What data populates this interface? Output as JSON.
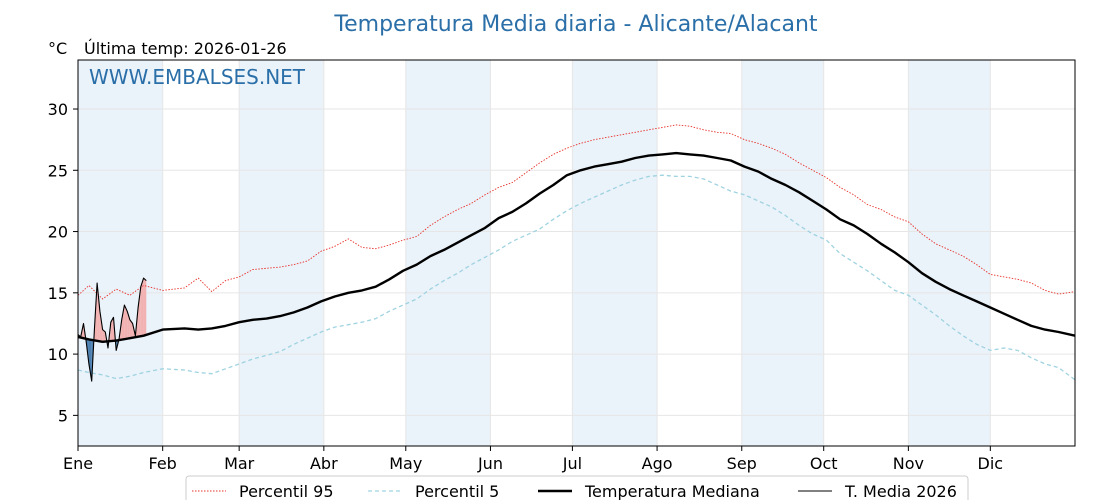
{
  "page": {
    "title": "Temperatura Media diaria - Alicante/Alacant",
    "unit_label": "°C",
    "last_temp_label": "Última temp: 2026-01-26",
    "watermark": "WWW.EMBALSES.NET"
  },
  "legend": [
    {
      "label": "Percentil 95",
      "color": "#e8322b",
      "style": "dotted"
    },
    {
      "label": "Percentil 5",
      "color": "#9fd3e0",
      "style": "dashed"
    },
    {
      "label": "Temperatura Mediana",
      "color": "#000000",
      "style": "thick"
    },
    {
      "label": "T. Media 2026",
      "color": "#000000",
      "style": "thin"
    }
  ],
  "colors": {
    "title": "#2b6fa8",
    "month_band": "#eaf2fa",
    "above_median_fill": "#f2b2b2",
    "below_median_fill": "#4b7fb0",
    "grid": "#e6e6e6"
  },
  "chart_data": {
    "type": "line",
    "title": "Temperatura Media diaria - Alicante/Alacant",
    "ylabel": "°C",
    "xlabel": "",
    "ylim": [
      2.5,
      34
    ],
    "yticks": [
      5,
      10,
      15,
      20,
      25,
      30
    ],
    "x_unit": "day of year",
    "xlim": [
      1,
      366
    ],
    "month_ticks": [
      {
        "label": "Ene",
        "day": 1
      },
      {
        "label": "Feb",
        "day": 32
      },
      {
        "label": "Mar",
        "day": 60
      },
      {
        "label": "Abr",
        "day": 91
      },
      {
        "label": "May",
        "day": 121
      },
      {
        "label": "Jun",
        "day": 152
      },
      {
        "label": "Jul",
        "day": 182
      },
      {
        "label": "Ago",
        "day": 213
      },
      {
        "label": "Sep",
        "day": 244
      },
      {
        "label": "Oct",
        "day": 274
      },
      {
        "label": "Nov",
        "day": 305
      },
      {
        "label": "Dic",
        "day": 335
      }
    ],
    "grid": true,
    "legend_position": "bottom",
    "series": [
      {
        "name": "Percentil 95",
        "style": "dotted",
        "points": [
          [
            1,
            14.8
          ],
          [
            5,
            15.6
          ],
          [
            10,
            14.5
          ],
          [
            15,
            15.3
          ],
          [
            20,
            14.8
          ],
          [
            25,
            15.6
          ],
          [
            32,
            15.2
          ],
          [
            40,
            15.4
          ],
          [
            45,
            16.2
          ],
          [
            50,
            15.1
          ],
          [
            55,
            16.0
          ],
          [
            60,
            16.3
          ],
          [
            65,
            16.9
          ],
          [
            70,
            17.0
          ],
          [
            75,
            17.1
          ],
          [
            80,
            17.3
          ],
          [
            85,
            17.6
          ],
          [
            90,
            18.4
          ],
          [
            95,
            18.8
          ],
          [
            100,
            19.4
          ],
          [
            105,
            18.7
          ],
          [
            110,
            18.6
          ],
          [
            115,
            18.9
          ],
          [
            120,
            19.3
          ],
          [
            125,
            19.6
          ],
          [
            130,
            20.5
          ],
          [
            135,
            21.2
          ],
          [
            140,
            21.8
          ],
          [
            145,
            22.3
          ],
          [
            150,
            23.0
          ],
          [
            155,
            23.6
          ],
          [
            160,
            24.0
          ],
          [
            165,
            24.8
          ],
          [
            170,
            25.6
          ],
          [
            175,
            26.3
          ],
          [
            180,
            26.8
          ],
          [
            185,
            27.2
          ],
          [
            190,
            27.5
          ],
          [
            195,
            27.7
          ],
          [
            200,
            27.9
          ],
          [
            205,
            28.1
          ],
          [
            210,
            28.3
          ],
          [
            215,
            28.5
          ],
          [
            220,
            28.7
          ],
          [
            225,
            28.6
          ],
          [
            230,
            28.3
          ],
          [
            235,
            28.1
          ],
          [
            240,
            28.0
          ],
          [
            245,
            27.5
          ],
          [
            250,
            27.2
          ],
          [
            255,
            26.8
          ],
          [
            260,
            26.3
          ],
          [
            265,
            25.6
          ],
          [
            270,
            25.0
          ],
          [
            275,
            24.4
          ],
          [
            280,
            23.6
          ],
          [
            285,
            23.0
          ],
          [
            290,
            22.2
          ],
          [
            295,
            21.8
          ],
          [
            300,
            21.2
          ],
          [
            305,
            20.8
          ],
          [
            310,
            19.8
          ],
          [
            315,
            19.0
          ],
          [
            320,
            18.5
          ],
          [
            325,
            18.0
          ],
          [
            330,
            17.3
          ],
          [
            335,
            16.5
          ],
          [
            340,
            16.3
          ],
          [
            345,
            16.1
          ],
          [
            350,
            15.8
          ],
          [
            355,
            15.2
          ],
          [
            360,
            14.9
          ],
          [
            366,
            15.1
          ]
        ]
      },
      {
        "name": "Percentil 5",
        "style": "dashed",
        "points": [
          [
            1,
            8.7
          ],
          [
            5,
            8.5
          ],
          [
            10,
            8.3
          ],
          [
            15,
            8.0
          ],
          [
            20,
            8.2
          ],
          [
            25,
            8.5
          ],
          [
            32,
            8.8
          ],
          [
            40,
            8.7
          ],
          [
            45,
            8.5
          ],
          [
            50,
            8.4
          ],
          [
            55,
            8.8
          ],
          [
            60,
            9.2
          ],
          [
            65,
            9.6
          ],
          [
            70,
            9.9
          ],
          [
            75,
            10.2
          ],
          [
            80,
            10.8
          ],
          [
            85,
            11.3
          ],
          [
            90,
            11.8
          ],
          [
            95,
            12.2
          ],
          [
            100,
            12.4
          ],
          [
            105,
            12.6
          ],
          [
            110,
            12.9
          ],
          [
            115,
            13.5
          ],
          [
            120,
            14.0
          ],
          [
            125,
            14.5
          ],
          [
            130,
            15.3
          ],
          [
            135,
            16.0
          ],
          [
            140,
            16.6
          ],
          [
            145,
            17.3
          ],
          [
            150,
            17.9
          ],
          [
            155,
            18.5
          ],
          [
            160,
            19.2
          ],
          [
            165,
            19.7
          ],
          [
            170,
            20.2
          ],
          [
            175,
            21.0
          ],
          [
            180,
            21.7
          ],
          [
            185,
            22.3
          ],
          [
            190,
            22.8
          ],
          [
            195,
            23.3
          ],
          [
            200,
            23.8
          ],
          [
            205,
            24.2
          ],
          [
            210,
            24.5
          ],
          [
            215,
            24.6
          ],
          [
            220,
            24.5
          ],
          [
            225,
            24.5
          ],
          [
            230,
            24.3
          ],
          [
            235,
            23.8
          ],
          [
            240,
            23.3
          ],
          [
            245,
            23.0
          ],
          [
            250,
            22.5
          ],
          [
            255,
            22.0
          ],
          [
            260,
            21.3
          ],
          [
            265,
            20.5
          ],
          [
            270,
            19.8
          ],
          [
            275,
            19.3
          ],
          [
            280,
            18.2
          ],
          [
            285,
            17.5
          ],
          [
            290,
            16.8
          ],
          [
            295,
            16.0
          ],
          [
            300,
            15.2
          ],
          [
            305,
            14.8
          ],
          [
            310,
            14.0
          ],
          [
            315,
            13.2
          ],
          [
            320,
            12.3
          ],
          [
            325,
            11.5
          ],
          [
            330,
            10.8
          ],
          [
            335,
            10.3
          ],
          [
            340,
            10.5
          ],
          [
            345,
            10.3
          ],
          [
            350,
            9.7
          ],
          [
            355,
            9.2
          ],
          [
            360,
            8.9
          ],
          [
            366,
            7.9
          ]
        ]
      },
      {
        "name": "Temperatura Mediana",
        "style": "thick",
        "points": [
          [
            1,
            11.4
          ],
          [
            5,
            11.2
          ],
          [
            10,
            11.0
          ],
          [
            15,
            11.1
          ],
          [
            20,
            11.3
          ],
          [
            25,
            11.5
          ],
          [
            32,
            12.0
          ],
          [
            40,
            12.1
          ],
          [
            45,
            12.0
          ],
          [
            50,
            12.1
          ],
          [
            55,
            12.3
          ],
          [
            60,
            12.6
          ],
          [
            65,
            12.8
          ],
          [
            70,
            12.9
          ],
          [
            75,
            13.1
          ],
          [
            80,
            13.4
          ],
          [
            85,
            13.8
          ],
          [
            90,
            14.3
          ],
          [
            95,
            14.7
          ],
          [
            100,
            15.0
          ],
          [
            105,
            15.2
          ],
          [
            110,
            15.5
          ],
          [
            115,
            16.1
          ],
          [
            120,
            16.8
          ],
          [
            125,
            17.3
          ],
          [
            130,
            18.0
          ],
          [
            135,
            18.5
          ],
          [
            140,
            19.1
          ],
          [
            145,
            19.7
          ],
          [
            150,
            20.3
          ],
          [
            155,
            21.1
          ],
          [
            160,
            21.6
          ],
          [
            165,
            22.3
          ],
          [
            170,
            23.1
          ],
          [
            175,
            23.8
          ],
          [
            180,
            24.6
          ],
          [
            185,
            25.0
          ],
          [
            190,
            25.3
          ],
          [
            195,
            25.5
          ],
          [
            200,
            25.7
          ],
          [
            205,
            26.0
          ],
          [
            210,
            26.2
          ],
          [
            215,
            26.3
          ],
          [
            220,
            26.4
          ],
          [
            225,
            26.3
          ],
          [
            230,
            26.2
          ],
          [
            235,
            26.0
          ],
          [
            240,
            25.8
          ],
          [
            245,
            25.3
          ],
          [
            250,
            24.9
          ],
          [
            255,
            24.3
          ],
          [
            260,
            23.8
          ],
          [
            265,
            23.2
          ],
          [
            270,
            22.5
          ],
          [
            275,
            21.8
          ],
          [
            280,
            21.0
          ],
          [
            285,
            20.5
          ],
          [
            290,
            19.8
          ],
          [
            295,
            19.0
          ],
          [
            300,
            18.3
          ],
          [
            305,
            17.5
          ],
          [
            310,
            16.6
          ],
          [
            315,
            15.9
          ],
          [
            320,
            15.3
          ],
          [
            325,
            14.8
          ],
          [
            330,
            14.3
          ],
          [
            335,
            13.8
          ],
          [
            340,
            13.3
          ],
          [
            345,
            12.8
          ],
          [
            350,
            12.3
          ],
          [
            355,
            12.0
          ],
          [
            360,
            11.8
          ],
          [
            366,
            11.5
          ]
        ]
      },
      {
        "name": "T. Media 2026",
        "style": "thin",
        "points": [
          [
            1,
            11.6
          ],
          [
            2,
            11.4
          ],
          [
            3,
            12.5
          ],
          [
            4,
            11.0
          ],
          [
            5,
            9.2
          ],
          [
            6,
            7.8
          ],
          [
            7,
            12.0
          ],
          [
            8,
            15.8
          ],
          [
            9,
            13.5
          ],
          [
            10,
            12.0
          ],
          [
            11,
            11.8
          ],
          [
            12,
            10.5
          ],
          [
            13,
            12.6
          ],
          [
            14,
            13.0
          ],
          [
            15,
            10.3
          ],
          [
            16,
            11.2
          ],
          [
            17,
            12.8
          ],
          [
            18,
            14.0
          ],
          [
            19,
            13.5
          ],
          [
            20,
            12.8
          ],
          [
            21,
            12.5
          ],
          [
            22,
            11.5
          ],
          [
            23,
            13.8
          ],
          [
            24,
            15.5
          ],
          [
            25,
            16.2
          ],
          [
            26,
            16.0
          ]
        ]
      }
    ]
  }
}
